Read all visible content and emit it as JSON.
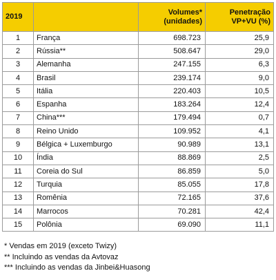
{
  "table": {
    "header": [
      [
        "2019"
      ],
      [],
      [
        "Volumes*",
        "(unidades)"
      ],
      [
        "Penetração",
        "VP+VU (%)"
      ]
    ],
    "rows": [
      [
        "1",
        "França",
        "698.723",
        "25,9"
      ],
      [
        "2",
        "Rússia**",
        "508.647",
        "29,0"
      ],
      [
        "3",
        "Alemanha",
        "247.155",
        "6,3"
      ],
      [
        "4",
        "Brasil",
        "239.174",
        "9,0"
      ],
      [
        "5",
        "Itália",
        "220.403",
        "10,5"
      ],
      [
        "6",
        "Espanha",
        "183.264",
        "12,4"
      ],
      [
        "7",
        "China***",
        "179.494",
        "0,7"
      ],
      [
        "8",
        "Reino Unido",
        "109.952",
        "4,1"
      ],
      [
        "9",
        "Bélgica + Luxemburgo",
        "90.989",
        "13,1"
      ],
      [
        "10",
        "Índia",
        "88.869",
        "2,5"
      ],
      [
        "11",
        "Coreia do Sul",
        "86.859",
        "5,0"
      ],
      [
        "12",
        "Turquia",
        "85.055",
        "17,8"
      ],
      [
        "13",
        "Romênia",
        "72.165",
        "37,6"
      ],
      [
        "14",
        "Marrocos",
        "70.281",
        "42,4"
      ],
      [
        "15",
        "Polônia",
        "69.090",
        "11,1"
      ]
    ]
  },
  "footnotes": [
    "* Vendas em 2019 (exceto Twizy)",
    "** Incluindo as vendas da Avtovaz",
    "*** Incluindo as vendas da Jinbei&Huasong"
  ]
}
